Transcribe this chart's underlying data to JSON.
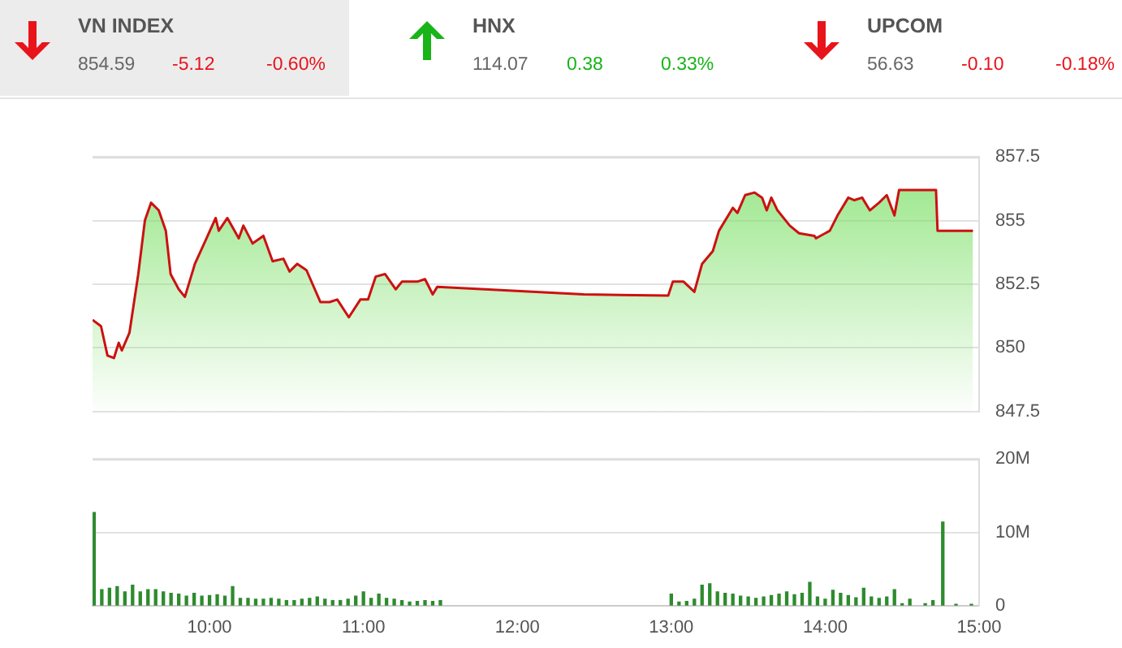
{
  "chart_data": [
    {
      "type": "other",
      "annotations": [
        "VN INDEX",
        "854.59",
        "-5.12",
        "-0.60%",
        "HNX",
        "114.07",
        "0.38",
        "0.33%",
        "UPCOM",
        "56.63",
        "-0.10",
        "-0.18%"
      ]
    },
    {
      "type": "area",
      "tick_labels": "y",
      "grid": "y",
      "xlim": [
        9.24,
        15
      ],
      "ylim": [
        847.5,
        857.5
      ],
      "yticks": [
        847.5,
        850,
        852.5,
        855,
        857.5
      ],
      "series": [
        {
          "color": "#cc1111",
          "x": [
            9.24,
            9.295,
            9.337,
            9.379,
            9.41,
            9.43,
            9.48,
            9.537,
            9.58,
            9.62,
            9.67,
            9.716,
            9.747,
            9.8,
            9.84,
            9.905,
            9.98,
            10.04,
            10.06,
            10.116,
            10.19,
            10.22,
            10.28,
            10.35,
            10.41,
            10.48,
            10.52,
            10.57,
            10.63,
            10.72,
            10.78,
            10.83,
            10.905,
            10.98,
            11.03,
            11.08,
            11.14,
            11.21,
            11.25,
            11.35,
            11.4,
            11.45,
            11.48,
            12.43,
            12.98,
            13.01,
            13.08,
            13.15,
            13.2,
            13.27,
            13.31,
            13.4,
            13.43,
            13.48,
            13.54,
            13.59,
            13.62,
            13.65,
            13.69,
            13.77,
            13.83,
            13.93,
            13.94,
            14.03,
            14.08,
            14.15,
            14.19,
            14.24,
            14.29,
            14.35,
            14.4,
            14.45,
            14.48,
            14.72,
            14.73,
            14.96
          ],
          "values": [
            851.1,
            850.85,
            849.7,
            849.6,
            850.2,
            849.9,
            850.6,
            852.9,
            855,
            855.7,
            855.4,
            854.6,
            852.9,
            852.3,
            852,
            853.3,
            854.3,
            855.1,
            854.6,
            855.1,
            854.3,
            854.8,
            854.1,
            854.4,
            853.4,
            853.5,
            853,
            853.3,
            853.05,
            851.8,
            851.8,
            851.9,
            851.2,
            851.9,
            851.9,
            852.8,
            852.9,
            852.3,
            852.6,
            852.6,
            852.7,
            852.1,
            852.4,
            852.1,
            852.05,
            852.6,
            852.6,
            852.2,
            853.3,
            853.8,
            854.6,
            855.5,
            855.3,
            856,
            856.1,
            855.9,
            855.4,
            855.9,
            855.4,
            854.8,
            854.5,
            854.4,
            854.3,
            854.6,
            855.2,
            855.9,
            855.8,
            855.9,
            855.4,
            855.7,
            856,
            855.2,
            856.2,
            856.2,
            854.6,
            854.6
          ]
        }
      ]
    },
    {
      "type": "bar",
      "grid": "y",
      "xlim": [
        9.24,
        15
      ],
      "ylim": [
        0,
        20
      ],
      "xticks": [
        {
          "value": 10,
          "label": "10:00"
        },
        {
          "value": 11,
          "label": "11:00"
        },
        {
          "value": 12,
          "label": "12:00"
        },
        {
          "value": 13,
          "label": "13:00"
        },
        {
          "value": 14,
          "label": "14:00"
        },
        {
          "value": 15,
          "label": "15:00"
        }
      ],
      "yticks": [
        0,
        {
          "value": 10,
          "label": "10M"
        },
        {
          "value": 20,
          "label": "20M"
        }
      ],
      "series": [
        {
          "color": "#2e8b2e",
          "x": [
            9.25,
            9.3,
            9.35,
            9.4,
            9.45,
            9.5,
            9.55,
            9.6,
            9.65,
            9.7,
            9.75,
            9.8,
            9.85,
            9.9,
            9.95,
            10,
            10.05,
            10.1,
            10.15,
            10.2,
            10.25,
            10.3,
            10.35,
            10.4,
            10.45,
            10.5,
            10.55,
            10.6,
            10.65,
            10.7,
            10.75,
            10.8,
            10.85,
            10.9,
            10.95,
            11,
            11.05,
            11.1,
            11.15,
            11.2,
            11.25,
            11.3,
            11.35,
            11.4,
            11.45,
            11.5,
            13,
            13.05,
            13.1,
            13.15,
            13.2,
            13.25,
            13.3,
            13.35,
            13.4,
            13.45,
            13.5,
            13.55,
            13.6,
            13.65,
            13.7,
            13.75,
            13.8,
            13.85,
            13.9,
            13.95,
            14,
            14.05,
            14.1,
            14.15,
            14.2,
            14.25,
            14.3,
            14.35,
            14.4,
            14.45,
            14.5,
            14.55,
            14.65,
            14.7,
            14.764,
            14.85,
            14.95
          ],
          "values": [
            12.7,
            2.2,
            2.4,
            2.6,
            1.9,
            2.8,
            1.9,
            2.2,
            2.2,
            1.9,
            1.7,
            1.6,
            1.3,
            1.7,
            1.3,
            1.4,
            1.5,
            1.3,
            2.6,
            1,
            1,
            0.9,
            0.9,
            1,
            0.9,
            0.7,
            0.7,
            0.9,
            1,
            1.2,
            0.9,
            0.7,
            0.7,
            0.9,
            1.3,
            1.9,
            1,
            1.6,
            1,
            0.9,
            0.7,
            0.5,
            0.6,
            0.7,
            0.6,
            0.7,
            1.6,
            0.5,
            0.6,
            0.9,
            2.8,
            3,
            1.9,
            1.7,
            1.6,
            1.3,
            1.2,
            1,
            1.2,
            1.4,
            1.6,
            1.9,
            1.5,
            1.7,
            3.2,
            1.2,
            0.9,
            2.1,
            1.7,
            1.4,
            1.1,
            2.4,
            1.2,
            1,
            1.2,
            2.2,
            0.3,
            0.9,
            0.3,
            0.7,
            11.4,
            0.2,
            0.2
          ]
        }
      ]
    }
  ]
}
